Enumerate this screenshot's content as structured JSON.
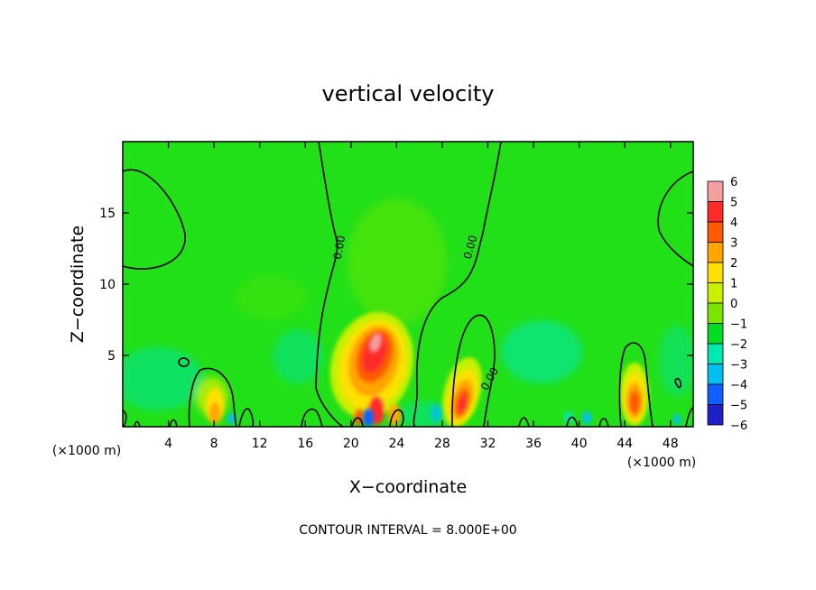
{
  "chart_data": {
    "type": "heatmap",
    "title": "vertical velocity",
    "xlabel": "X−coordinate",
    "ylabel": "Z−coordinate",
    "x_unit_label": "(×1000 m)",
    "z_unit_label": "(×1000 m)",
    "xlim": [
      0,
      50
    ],
    "ylim": [
      0,
      20
    ],
    "x_ticks": [
      4,
      8,
      12,
      16,
      20,
      24,
      28,
      32,
      36,
      40,
      44,
      48
    ],
    "y_ticks": [
      5,
      10,
      15
    ],
    "x_tick_labels": [
      "4",
      "8",
      "12",
      "16",
      "20",
      "24",
      "28",
      "32",
      "36",
      "40",
      "44",
      "48"
    ],
    "y_tick_labels": [
      "5",
      "10",
      "15"
    ],
    "colorbar": {
      "levels": [
        "6",
        "5",
        "4",
        "3",
        "2",
        "1",
        "0",
        "−1",
        "−2",
        "−3",
        "−4",
        "−5",
        "−6"
      ],
      "colors": [
        "#f4a0a0",
        "#ff2a2a",
        "#ff5a00",
        "#ffa500",
        "#ffe000",
        "#c8f000",
        "#7ae600",
        "#00dd22",
        "#00e8b0",
        "#00c0f0",
        "#1060ff",
        "#2020c8",
        "#8020c0"
      ]
    },
    "background_color": "#22e018",
    "contour_labels": [
      "0.00",
      "0.00",
      "0.00"
    ],
    "features": [
      {
        "x": 22.5,
        "z": 5.5,
        "value": 4.5,
        "kind": "updraft"
      },
      {
        "x": 30.0,
        "z": 2.0,
        "value": 3.5,
        "kind": "updraft"
      },
      {
        "x": 44.7,
        "z": 2.0,
        "value": 3.2,
        "kind": "updraft"
      },
      {
        "x": 8.0,
        "z": 2.0,
        "value": 1.0,
        "kind": "updraft"
      },
      {
        "x": 21.8,
        "z": 0.6,
        "value": -3.0,
        "kind": "downdraft"
      },
      {
        "x": 9.7,
        "z": 0.5,
        "value": -2.5,
        "kind": "downdraft"
      },
      {
        "x": 40.8,
        "z": 0.6,
        "value": -2.5,
        "kind": "downdraft"
      },
      {
        "x": 48.5,
        "z": 0.5,
        "value": -2.5,
        "kind": "downdraft"
      },
      {
        "x": 3.5,
        "z": 2.5,
        "value": -1.5,
        "kind": "downdraft"
      },
      {
        "x": 15.0,
        "z": 4.5,
        "value": -1.5,
        "kind": "downdraft"
      },
      {
        "x": 36.0,
        "z": 4.0,
        "value": -1.5,
        "kind": "downdraft"
      }
    ]
  },
  "footer": {
    "contour_interval": "CONTOUR INTERVAL = 8.000E+00"
  }
}
